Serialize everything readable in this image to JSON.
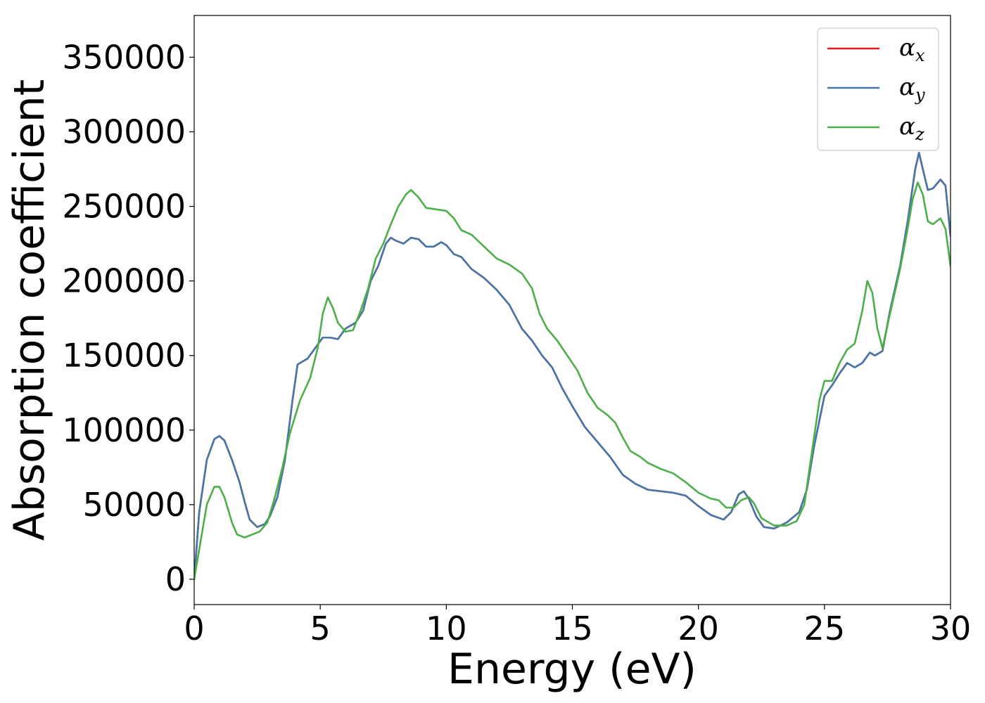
{
  "chart_data": {
    "type": "line",
    "xlabel": "Energy (eV)",
    "ylabel": "Absorption coefficient",
    "xlim": [
      0,
      30
    ],
    "ylim": [
      -17000,
      378000
    ],
    "xticks": [
      0,
      5,
      10,
      15,
      20,
      25,
      30
    ],
    "yticks": [
      0,
      50000,
      100000,
      150000,
      200000,
      250000,
      300000,
      350000
    ],
    "grid": false,
    "legend_position": "top-right",
    "series": [
      {
        "name": "αx",
        "legend_base": "α",
        "legend_sub": "x",
        "color": "#e41a1c",
        "points": [
          [
            0,
            0
          ],
          [
            0.2,
            45000
          ],
          [
            0.5,
            80000
          ],
          [
            0.8,
            94000
          ],
          [
            1.0,
            96000
          ],
          [
            1.2,
            93000
          ],
          [
            1.5,
            80000
          ],
          [
            1.8,
            65000
          ],
          [
            2.0,
            52000
          ],
          [
            2.2,
            40000
          ],
          [
            2.5,
            35000
          ],
          [
            2.8,
            37000
          ],
          [
            3.0,
            42000
          ],
          [
            3.3,
            55000
          ],
          [
            3.6,
            80000
          ],
          [
            3.9,
            120000
          ],
          [
            4.1,
            144000
          ],
          [
            4.5,
            148000
          ],
          [
            4.8,
            155000
          ],
          [
            5.1,
            162000
          ],
          [
            5.4,
            162000
          ],
          [
            5.7,
            161000
          ],
          [
            6.0,
            168000
          ],
          [
            6.4,
            172000
          ],
          [
            6.7,
            180000
          ],
          [
            7.0,
            200000
          ],
          [
            7.3,
            210000
          ],
          [
            7.6,
            225000
          ],
          [
            7.8,
            229000
          ],
          [
            8.0,
            227000
          ],
          [
            8.3,
            225000
          ],
          [
            8.6,
            229000
          ],
          [
            8.9,
            228000
          ],
          [
            9.2,
            223000
          ],
          [
            9.5,
            223000
          ],
          [
            9.8,
            226000
          ],
          [
            10.0,
            224000
          ],
          [
            10.3,
            218000
          ],
          [
            10.6,
            216000
          ],
          [
            11.0,
            208000
          ],
          [
            11.5,
            202000
          ],
          [
            12.0,
            194000
          ],
          [
            12.5,
            184000
          ],
          [
            13.0,
            168000
          ],
          [
            13.4,
            160000
          ],
          [
            13.8,
            150000
          ],
          [
            14.2,
            142000
          ],
          [
            14.6,
            128000
          ],
          [
            15.0,
            116000
          ],
          [
            15.5,
            102000
          ],
          [
            16.0,
            92000
          ],
          [
            16.5,
            82000
          ],
          [
            17.0,
            70000
          ],
          [
            17.5,
            64000
          ],
          [
            18.0,
            60000
          ],
          [
            18.5,
            59000
          ],
          [
            19.0,
            58000
          ],
          [
            19.5,
            56000
          ],
          [
            20.0,
            49000
          ],
          [
            20.5,
            43000
          ],
          [
            21.0,
            40000
          ],
          [
            21.3,
            45000
          ],
          [
            21.6,
            57000
          ],
          [
            21.8,
            59000
          ],
          [
            22.0,
            54000
          ],
          [
            22.3,
            42000
          ],
          [
            22.6,
            35000
          ],
          [
            23.0,
            34000
          ],
          [
            23.5,
            38000
          ],
          [
            24.0,
            45000
          ],
          [
            24.3,
            60000
          ],
          [
            24.6,
            90000
          ],
          [
            25.0,
            123000
          ],
          [
            25.3,
            130000
          ],
          [
            25.6,
            138000
          ],
          [
            25.9,
            145000
          ],
          [
            26.2,
            142000
          ],
          [
            26.5,
            145000
          ],
          [
            26.8,
            152000
          ],
          [
            27.0,
            150000
          ],
          [
            27.3,
            153000
          ],
          [
            27.6,
            180000
          ],
          [
            28.0,
            210000
          ],
          [
            28.3,
            240000
          ],
          [
            28.6,
            275000
          ],
          [
            28.75,
            286000
          ],
          [
            28.9,
            275000
          ],
          [
            29.1,
            261000
          ],
          [
            29.3,
            262000
          ],
          [
            29.6,
            268000
          ],
          [
            29.8,
            264000
          ],
          [
            30.0,
            230000
          ]
        ]
      },
      {
        "name": "αy",
        "legend_base": "α",
        "legend_sub": "y",
        "color": "#4477aa",
        "points": [
          [
            0,
            0
          ],
          [
            0.2,
            45000
          ],
          [
            0.5,
            80000
          ],
          [
            0.8,
            94000
          ],
          [
            1.0,
            96000
          ],
          [
            1.2,
            93000
          ],
          [
            1.5,
            80000
          ],
          [
            1.8,
            65000
          ],
          [
            2.0,
            52000
          ],
          [
            2.2,
            40000
          ],
          [
            2.5,
            35000
          ],
          [
            2.8,
            37000
          ],
          [
            3.0,
            42000
          ],
          [
            3.3,
            55000
          ],
          [
            3.6,
            80000
          ],
          [
            3.9,
            120000
          ],
          [
            4.1,
            144000
          ],
          [
            4.5,
            148000
          ],
          [
            4.8,
            155000
          ],
          [
            5.1,
            162000
          ],
          [
            5.4,
            162000
          ],
          [
            5.7,
            161000
          ],
          [
            6.0,
            168000
          ],
          [
            6.4,
            172000
          ],
          [
            6.7,
            180000
          ],
          [
            7.0,
            200000
          ],
          [
            7.3,
            210000
          ],
          [
            7.6,
            225000
          ],
          [
            7.8,
            229000
          ],
          [
            8.0,
            227000
          ],
          [
            8.3,
            225000
          ],
          [
            8.6,
            229000
          ],
          [
            8.9,
            228000
          ],
          [
            9.2,
            223000
          ],
          [
            9.5,
            223000
          ],
          [
            9.8,
            226000
          ],
          [
            10.0,
            224000
          ],
          [
            10.3,
            218000
          ],
          [
            10.6,
            216000
          ],
          [
            11.0,
            208000
          ],
          [
            11.5,
            202000
          ],
          [
            12.0,
            194000
          ],
          [
            12.5,
            184000
          ],
          [
            13.0,
            168000
          ],
          [
            13.4,
            160000
          ],
          [
            13.8,
            150000
          ],
          [
            14.2,
            142000
          ],
          [
            14.6,
            128000
          ],
          [
            15.0,
            116000
          ],
          [
            15.5,
            102000
          ],
          [
            16.0,
            92000
          ],
          [
            16.5,
            82000
          ],
          [
            17.0,
            70000
          ],
          [
            17.5,
            64000
          ],
          [
            18.0,
            60000
          ],
          [
            18.5,
            59000
          ],
          [
            19.0,
            58000
          ],
          [
            19.5,
            56000
          ],
          [
            20.0,
            49000
          ],
          [
            20.5,
            43000
          ],
          [
            21.0,
            40000
          ],
          [
            21.3,
            45000
          ],
          [
            21.6,
            57000
          ],
          [
            21.8,
            59000
          ],
          [
            22.0,
            54000
          ],
          [
            22.3,
            42000
          ],
          [
            22.6,
            35000
          ],
          [
            23.0,
            34000
          ],
          [
            23.5,
            38000
          ],
          [
            24.0,
            45000
          ],
          [
            24.3,
            60000
          ],
          [
            24.6,
            90000
          ],
          [
            25.0,
            123000
          ],
          [
            25.3,
            130000
          ],
          [
            25.6,
            138000
          ],
          [
            25.9,
            145000
          ],
          [
            26.2,
            142000
          ],
          [
            26.5,
            145000
          ],
          [
            26.8,
            152000
          ],
          [
            27.0,
            150000
          ],
          [
            27.3,
            153000
          ],
          [
            27.6,
            180000
          ],
          [
            28.0,
            210000
          ],
          [
            28.3,
            240000
          ],
          [
            28.6,
            275000
          ],
          [
            28.75,
            286000
          ],
          [
            28.9,
            275000
          ],
          [
            29.1,
            261000
          ],
          [
            29.3,
            262000
          ],
          [
            29.6,
            268000
          ],
          [
            29.8,
            264000
          ],
          [
            30.0,
            230000
          ]
        ]
      },
      {
        "name": "αz",
        "legend_base": "α",
        "legend_sub": "z",
        "color": "#4daf4a",
        "points": [
          [
            0,
            0
          ],
          [
            0.2,
            20000
          ],
          [
            0.5,
            50000
          ],
          [
            0.8,
            62000
          ],
          [
            1.0,
            62000
          ],
          [
            1.2,
            55000
          ],
          [
            1.5,
            38000
          ],
          [
            1.7,
            30000
          ],
          [
            2.0,
            28000
          ],
          [
            2.3,
            30000
          ],
          [
            2.6,
            32000
          ],
          [
            2.9,
            38000
          ],
          [
            3.2,
            55000
          ],
          [
            3.5,
            75000
          ],
          [
            3.8,
            98000
          ],
          [
            4.2,
            120000
          ],
          [
            4.6,
            135000
          ],
          [
            4.9,
            155000
          ],
          [
            5.1,
            178000
          ],
          [
            5.3,
            189000
          ],
          [
            5.5,
            182000
          ],
          [
            5.7,
            172000
          ],
          [
            6.0,
            166000
          ],
          [
            6.3,
            167000
          ],
          [
            6.6,
            180000
          ],
          [
            6.9,
            195000
          ],
          [
            7.2,
            215000
          ],
          [
            7.5,
            225000
          ],
          [
            7.8,
            238000
          ],
          [
            8.1,
            250000
          ],
          [
            8.4,
            258000
          ],
          [
            8.6,
            261000
          ],
          [
            8.9,
            256000
          ],
          [
            9.2,
            249000
          ],
          [
            9.6,
            248000
          ],
          [
            10.0,
            247000
          ],
          [
            10.3,
            242000
          ],
          [
            10.6,
            234000
          ],
          [
            11.0,
            231000
          ],
          [
            11.5,
            223000
          ],
          [
            12.0,
            215000
          ],
          [
            12.5,
            211000
          ],
          [
            13.0,
            205000
          ],
          [
            13.4,
            195000
          ],
          [
            13.7,
            178000
          ],
          [
            14.0,
            168000
          ],
          [
            14.4,
            160000
          ],
          [
            14.8,
            150000
          ],
          [
            15.2,
            140000
          ],
          [
            15.6,
            125000
          ],
          [
            16.0,
            115000
          ],
          [
            16.4,
            110000
          ],
          [
            16.7,
            105000
          ],
          [
            17.0,
            95000
          ],
          [
            17.3,
            86000
          ],
          [
            17.7,
            82000
          ],
          [
            18.0,
            78000
          ],
          [
            18.5,
            74000
          ],
          [
            19.0,
            71000
          ],
          [
            19.5,
            65000
          ],
          [
            20.0,
            58000
          ],
          [
            20.5,
            54000
          ],
          [
            20.8,
            53000
          ],
          [
            21.1,
            48000
          ],
          [
            21.4,
            48000
          ],
          [
            21.7,
            53000
          ],
          [
            22.0,
            55000
          ],
          [
            22.2,
            51000
          ],
          [
            22.5,
            41000
          ],
          [
            23.0,
            36000
          ],
          [
            23.5,
            36000
          ],
          [
            23.9,
            39000
          ],
          [
            24.2,
            50000
          ],
          [
            24.5,
            85000
          ],
          [
            24.8,
            120000
          ],
          [
            25.0,
            133000
          ],
          [
            25.3,
            133000
          ],
          [
            25.6,
            145000
          ],
          [
            25.9,
            154000
          ],
          [
            26.2,
            158000
          ],
          [
            26.5,
            180000
          ],
          [
            26.7,
            200000
          ],
          [
            26.9,
            192000
          ],
          [
            27.1,
            168000
          ],
          [
            27.3,
            155000
          ],
          [
            27.6,
            178000
          ],
          [
            28.0,
            208000
          ],
          [
            28.3,
            235000
          ],
          [
            28.5,
            255000
          ],
          [
            28.7,
            266000
          ],
          [
            28.9,
            258000
          ],
          [
            29.1,
            240000
          ],
          [
            29.3,
            238000
          ],
          [
            29.6,
            242000
          ],
          [
            29.8,
            235000
          ],
          [
            30.0,
            210000
          ]
        ]
      }
    ]
  }
}
